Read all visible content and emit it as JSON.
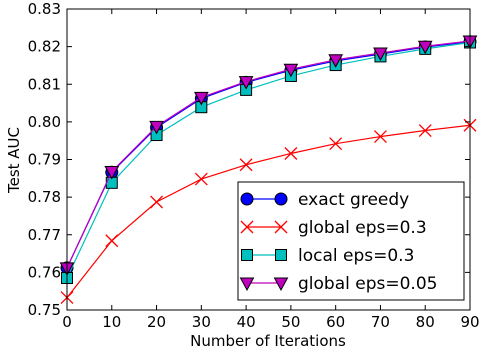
{
  "chart_data": {
    "type": "line",
    "xlabel": "Number of Iterations",
    "ylabel": "Test AUC",
    "xlim": [
      0,
      90
    ],
    "ylim": [
      0.75,
      0.83
    ],
    "xticks": [
      0,
      10,
      20,
      30,
      40,
      50,
      60,
      70,
      80,
      90
    ],
    "yticks": [
      0.75,
      0.76,
      0.77,
      0.78,
      0.79,
      0.8,
      0.81,
      0.82,
      0.83
    ],
    "xtick_labels": [
      "0",
      "10",
      "20",
      "30",
      "40",
      "50",
      "60",
      "70",
      "80",
      "90"
    ],
    "ytick_labels": [
      "0.75",
      "0.76",
      "0.77",
      "0.78",
      "0.79",
      "0.80",
      "0.81",
      "0.82",
      "0.83"
    ],
    "grid": false,
    "legend_position": "bottom-right",
    "series": [
      {
        "name": "exact greedy",
        "color": "#0000ff",
        "marker": "circle",
        "x": [
          0,
          10,
          20,
          30,
          40,
          50,
          60,
          70,
          80,
          90
        ],
        "y": [
          0.7612,
          0.7866,
          0.7985,
          0.8062,
          0.8105,
          0.8137,
          0.8162,
          0.818,
          0.8199,
          0.8213
        ]
      },
      {
        "name": "global eps=0.3",
        "color": "#ff0000",
        "marker": "x",
        "x": [
          0,
          10,
          20,
          30,
          40,
          50,
          60,
          70,
          80,
          90
        ],
        "y": [
          0.7533,
          0.7684,
          0.7787,
          0.7848,
          0.7886,
          0.7916,
          0.7942,
          0.7961,
          0.7977,
          0.7991
        ]
      },
      {
        "name": "local eps=0.3",
        "color": "#00bfbf",
        "marker": "square",
        "x": [
          0,
          10,
          20,
          30,
          40,
          50,
          60,
          70,
          80,
          90
        ],
        "y": [
          0.7585,
          0.7838,
          0.7965,
          0.8039,
          0.8085,
          0.8122,
          0.8151,
          0.8174,
          0.8194,
          0.8211
        ]
      },
      {
        "name": "global eps=0.05",
        "color": "#bf00bf",
        "marker": "triangle-down",
        "x": [
          0,
          10,
          20,
          30,
          40,
          50,
          60,
          70,
          80,
          90
        ],
        "y": [
          0.7612,
          0.7868,
          0.7988,
          0.8065,
          0.8107,
          0.814,
          0.8165,
          0.8183,
          0.8201,
          0.8215
        ]
      }
    ]
  }
}
